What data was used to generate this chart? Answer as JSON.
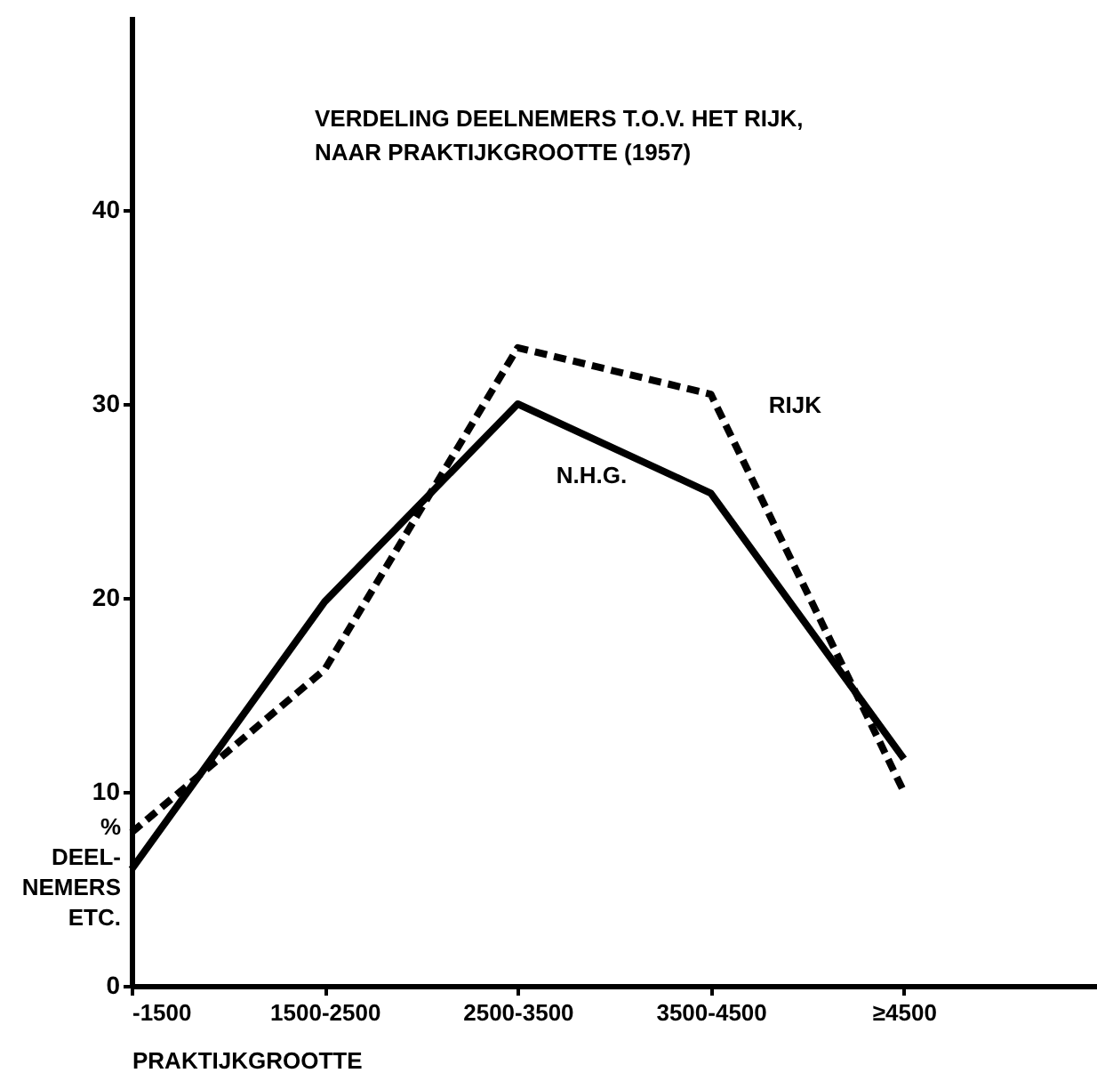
{
  "chart_data": {
    "type": "line",
    "title": "VERDELING DEELNEMERS T.O.V. HET RIJK,\nNAAR PRAKTIJKGROOTTE (1957)",
    "xlabel": "PRAKTIJKGROOTTE",
    "ylabel": "%\nDEEL-\nNEMERS\nETC.",
    "categories": [
      "-1500",
      "1500-2500",
      "2500-3500",
      "3500-4500",
      "≥4500"
    ],
    "series": [
      {
        "name": "N.H.G.",
        "color": "#000000",
        "line_style": "solid",
        "values": [
          6.0,
          19.8,
          30.0,
          25.4,
          11.7
        ]
      },
      {
        "name": "RIJK",
        "color": "#000000",
        "line_style": "dashed",
        "values": [
          7.9,
          16.3,
          32.9,
          30.5,
          10.0
        ]
      }
    ],
    "ylim": [
      0,
      50
    ],
    "yticks": [
      0,
      10,
      20,
      30,
      40
    ],
    "grid": false,
    "legend": false,
    "marker": "none"
  }
}
